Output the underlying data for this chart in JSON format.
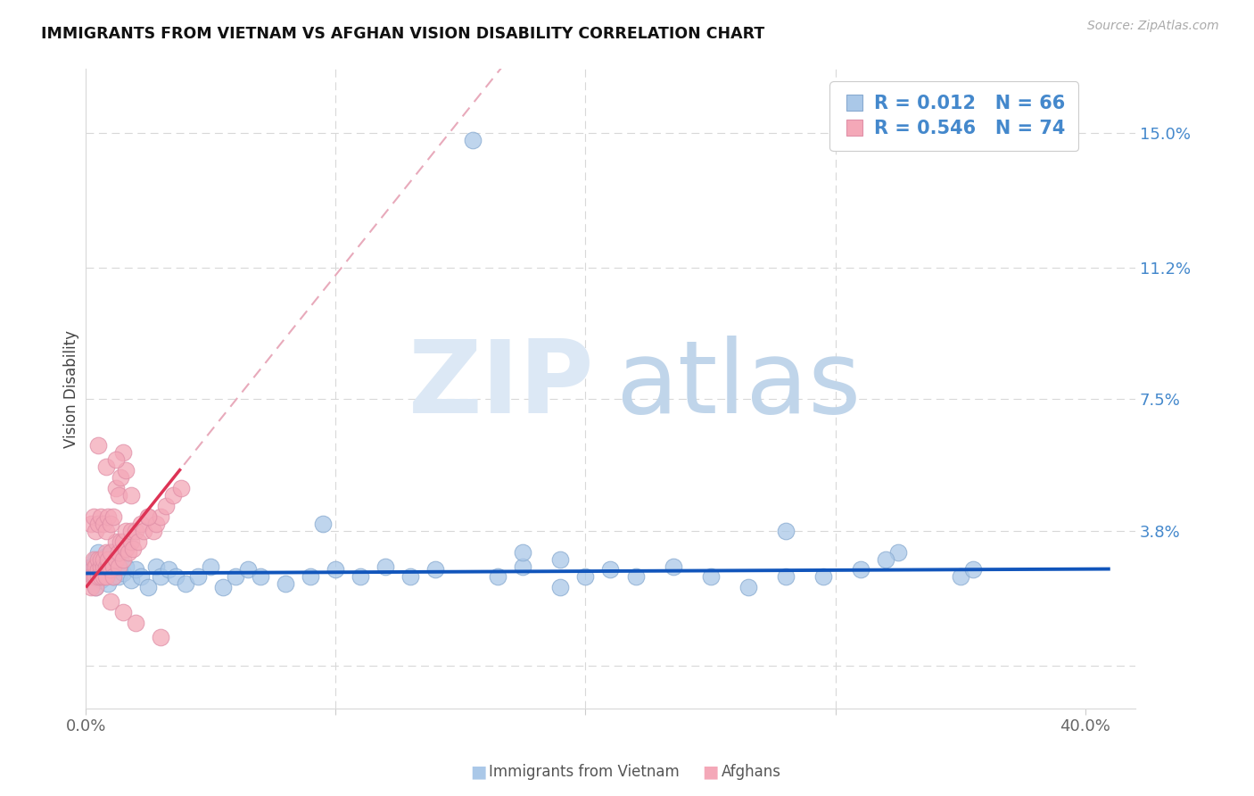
{
  "title": "IMMIGRANTS FROM VIETNAM VS AFGHAN VISION DISABILITY CORRELATION CHART",
  "source": "Source: ZipAtlas.com",
  "ylabel": "Vision Disability",
  "xlim": [
    0.0,
    0.42
  ],
  "ylim": [
    -0.012,
    0.168
  ],
  "yticks": [
    0.0,
    0.038,
    0.075,
    0.112,
    0.15
  ],
  "ytick_labels_right": [
    "",
    "3.8%",
    "7.5%",
    "11.2%",
    "15.0%"
  ],
  "xticks": [
    0.0,
    0.1,
    0.2,
    0.3,
    0.4
  ],
  "xtick_labels": [
    "0.0%",
    "",
    "",
    "",
    "40.0%"
  ],
  "blue_fill": "#aac8e8",
  "blue_edge": "#88aad0",
  "pink_fill": "#f4a8b8",
  "pink_edge": "#e090a8",
  "blue_line": "#1155bb",
  "pink_solid_line": "#dd3355",
  "pink_dash_line": "#e8aabb",
  "grid_color": "#d8d8d8",
  "right_axis_color": "#4488cc",
  "title_color": "#111111",
  "source_color": "#aaaaaa",
  "watermark_zip": "#dce8f5",
  "watermark_atlas": "#c0d5ea",
  "legend_label1": "Immigrants from Vietnam",
  "legend_label2": "Afghans",
  "legend_r1": "0.012",
  "legend_n1": "66",
  "legend_r2": "0.546",
  "legend_n2": "74",
  "blue_x": [
    0.002,
    0.003,
    0.004,
    0.004,
    0.005,
    0.005,
    0.006,
    0.006,
    0.007,
    0.007,
    0.008,
    0.008,
    0.009,
    0.009,
    0.01,
    0.01,
    0.011,
    0.011,
    0.012,
    0.013,
    0.014,
    0.015,
    0.016,
    0.018,
    0.02,
    0.022,
    0.025,
    0.028,
    0.03,
    0.033,
    0.036,
    0.04,
    0.045,
    0.05,
    0.055,
    0.06,
    0.065,
    0.07,
    0.08,
    0.09,
    0.1,
    0.11,
    0.12,
    0.13,
    0.14,
    0.155,
    0.165,
    0.175,
    0.19,
    0.2,
    0.21,
    0.22,
    0.235,
    0.25,
    0.265,
    0.28,
    0.295,
    0.31,
    0.325,
    0.35,
    0.28,
    0.095,
    0.19,
    0.175,
    0.32,
    0.355
  ],
  "blue_y": [
    0.028,
    0.025,
    0.03,
    0.022,
    0.027,
    0.032,
    0.024,
    0.028,
    0.026,
    0.03,
    0.025,
    0.031,
    0.028,
    0.023,
    0.027,
    0.032,
    0.025,
    0.029,
    0.027,
    0.025,
    0.03,
    0.026,
    0.028,
    0.024,
    0.027,
    0.025,
    0.022,
    0.028,
    0.025,
    0.027,
    0.025,
    0.023,
    0.025,
    0.028,
    0.022,
    0.025,
    0.027,
    0.025,
    0.023,
    0.025,
    0.027,
    0.025,
    0.028,
    0.025,
    0.027,
    0.148,
    0.025,
    0.028,
    0.03,
    0.025,
    0.027,
    0.025,
    0.028,
    0.025,
    0.022,
    0.038,
    0.025,
    0.027,
    0.032,
    0.025,
    0.025,
    0.04,
    0.022,
    0.032,
    0.03,
    0.027
  ],
  "pink_x": [
    0.002,
    0.002,
    0.003,
    0.003,
    0.003,
    0.004,
    0.004,
    0.004,
    0.005,
    0.005,
    0.005,
    0.006,
    0.006,
    0.006,
    0.007,
    0.007,
    0.007,
    0.008,
    0.008,
    0.008,
    0.009,
    0.009,
    0.01,
    0.01,
    0.011,
    0.011,
    0.012,
    0.012,
    0.013,
    0.013,
    0.014,
    0.015,
    0.015,
    0.016,
    0.016,
    0.017,
    0.018,
    0.018,
    0.019,
    0.02,
    0.021,
    0.022,
    0.023,
    0.025,
    0.027,
    0.028,
    0.03,
    0.032,
    0.035,
    0.038,
    0.002,
    0.003,
    0.004,
    0.005,
    0.006,
    0.007,
    0.008,
    0.009,
    0.01,
    0.011,
    0.012,
    0.013,
    0.014,
    0.015,
    0.016,
    0.005,
    0.008,
    0.012,
    0.018,
    0.025,
    0.01,
    0.015,
    0.02,
    0.03
  ],
  "pink_y": [
    0.025,
    0.022,
    0.028,
    0.025,
    0.03,
    0.025,
    0.028,
    0.022,
    0.027,
    0.03,
    0.025,
    0.028,
    0.03,
    0.025,
    0.028,
    0.025,
    0.03,
    0.028,
    0.032,
    0.025,
    0.028,
    0.03,
    0.027,
    0.032,
    0.028,
    0.025,
    0.03,
    0.035,
    0.028,
    0.032,
    0.035,
    0.03,
    0.035,
    0.033,
    0.038,
    0.032,
    0.035,
    0.038,
    0.033,
    0.038,
    0.035,
    0.04,
    0.038,
    0.042,
    0.038,
    0.04,
    0.042,
    0.045,
    0.048,
    0.05,
    0.04,
    0.042,
    0.038,
    0.04,
    0.042,
    0.04,
    0.038,
    0.042,
    0.04,
    0.042,
    0.05,
    0.048,
    0.053,
    0.06,
    0.055,
    0.062,
    0.056,
    0.058,
    0.048,
    0.042,
    0.018,
    0.015,
    0.012,
    0.008
  ]
}
